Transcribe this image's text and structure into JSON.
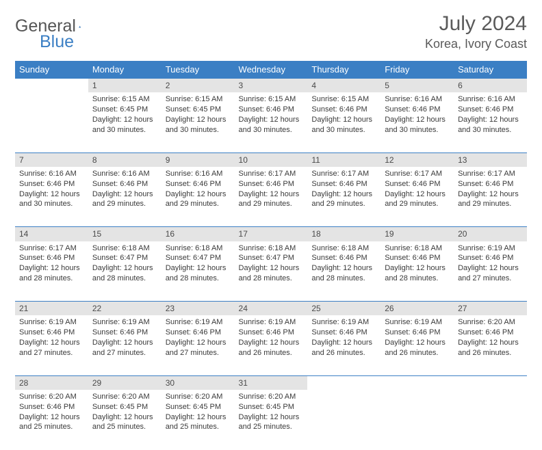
{
  "logo": {
    "general": "General",
    "blue": "Blue"
  },
  "title": "July 2024",
  "location": "Korea, Ivory Coast",
  "colors": {
    "header_bg": "#3b7fc4",
    "header_text": "#ffffff",
    "daynum_bg": "#e4e4e4",
    "rule": "#3b7fc4",
    "text": "#3a3a3a",
    "page_bg": "#ffffff"
  },
  "weekdays": [
    "Sunday",
    "Monday",
    "Tuesday",
    "Wednesday",
    "Thursday",
    "Friday",
    "Saturday"
  ],
  "weeks": [
    [
      null,
      {
        "day": "1",
        "sunrise": "Sunrise: 6:15 AM",
        "sunset": "Sunset: 6:45 PM",
        "daylight1": "Daylight: 12 hours",
        "daylight2": "and 30 minutes."
      },
      {
        "day": "2",
        "sunrise": "Sunrise: 6:15 AM",
        "sunset": "Sunset: 6:45 PM",
        "daylight1": "Daylight: 12 hours",
        "daylight2": "and 30 minutes."
      },
      {
        "day": "3",
        "sunrise": "Sunrise: 6:15 AM",
        "sunset": "Sunset: 6:46 PM",
        "daylight1": "Daylight: 12 hours",
        "daylight2": "and 30 minutes."
      },
      {
        "day": "4",
        "sunrise": "Sunrise: 6:15 AM",
        "sunset": "Sunset: 6:46 PM",
        "daylight1": "Daylight: 12 hours",
        "daylight2": "and 30 minutes."
      },
      {
        "day": "5",
        "sunrise": "Sunrise: 6:16 AM",
        "sunset": "Sunset: 6:46 PM",
        "daylight1": "Daylight: 12 hours",
        "daylight2": "and 30 minutes."
      },
      {
        "day": "6",
        "sunrise": "Sunrise: 6:16 AM",
        "sunset": "Sunset: 6:46 PM",
        "daylight1": "Daylight: 12 hours",
        "daylight2": "and 30 minutes."
      }
    ],
    [
      {
        "day": "7",
        "sunrise": "Sunrise: 6:16 AM",
        "sunset": "Sunset: 6:46 PM",
        "daylight1": "Daylight: 12 hours",
        "daylight2": "and 30 minutes."
      },
      {
        "day": "8",
        "sunrise": "Sunrise: 6:16 AM",
        "sunset": "Sunset: 6:46 PM",
        "daylight1": "Daylight: 12 hours",
        "daylight2": "and 29 minutes."
      },
      {
        "day": "9",
        "sunrise": "Sunrise: 6:16 AM",
        "sunset": "Sunset: 6:46 PM",
        "daylight1": "Daylight: 12 hours",
        "daylight2": "and 29 minutes."
      },
      {
        "day": "10",
        "sunrise": "Sunrise: 6:17 AM",
        "sunset": "Sunset: 6:46 PM",
        "daylight1": "Daylight: 12 hours",
        "daylight2": "and 29 minutes."
      },
      {
        "day": "11",
        "sunrise": "Sunrise: 6:17 AM",
        "sunset": "Sunset: 6:46 PM",
        "daylight1": "Daylight: 12 hours",
        "daylight2": "and 29 minutes."
      },
      {
        "day": "12",
        "sunrise": "Sunrise: 6:17 AM",
        "sunset": "Sunset: 6:46 PM",
        "daylight1": "Daylight: 12 hours",
        "daylight2": "and 29 minutes."
      },
      {
        "day": "13",
        "sunrise": "Sunrise: 6:17 AM",
        "sunset": "Sunset: 6:46 PM",
        "daylight1": "Daylight: 12 hours",
        "daylight2": "and 29 minutes."
      }
    ],
    [
      {
        "day": "14",
        "sunrise": "Sunrise: 6:17 AM",
        "sunset": "Sunset: 6:46 PM",
        "daylight1": "Daylight: 12 hours",
        "daylight2": "and 28 minutes."
      },
      {
        "day": "15",
        "sunrise": "Sunrise: 6:18 AM",
        "sunset": "Sunset: 6:47 PM",
        "daylight1": "Daylight: 12 hours",
        "daylight2": "and 28 minutes."
      },
      {
        "day": "16",
        "sunrise": "Sunrise: 6:18 AM",
        "sunset": "Sunset: 6:47 PM",
        "daylight1": "Daylight: 12 hours",
        "daylight2": "and 28 minutes."
      },
      {
        "day": "17",
        "sunrise": "Sunrise: 6:18 AM",
        "sunset": "Sunset: 6:47 PM",
        "daylight1": "Daylight: 12 hours",
        "daylight2": "and 28 minutes."
      },
      {
        "day": "18",
        "sunrise": "Sunrise: 6:18 AM",
        "sunset": "Sunset: 6:46 PM",
        "daylight1": "Daylight: 12 hours",
        "daylight2": "and 28 minutes."
      },
      {
        "day": "19",
        "sunrise": "Sunrise: 6:18 AM",
        "sunset": "Sunset: 6:46 PM",
        "daylight1": "Daylight: 12 hours",
        "daylight2": "and 28 minutes."
      },
      {
        "day": "20",
        "sunrise": "Sunrise: 6:19 AM",
        "sunset": "Sunset: 6:46 PM",
        "daylight1": "Daylight: 12 hours",
        "daylight2": "and 27 minutes."
      }
    ],
    [
      {
        "day": "21",
        "sunrise": "Sunrise: 6:19 AM",
        "sunset": "Sunset: 6:46 PM",
        "daylight1": "Daylight: 12 hours",
        "daylight2": "and 27 minutes."
      },
      {
        "day": "22",
        "sunrise": "Sunrise: 6:19 AM",
        "sunset": "Sunset: 6:46 PM",
        "daylight1": "Daylight: 12 hours",
        "daylight2": "and 27 minutes."
      },
      {
        "day": "23",
        "sunrise": "Sunrise: 6:19 AM",
        "sunset": "Sunset: 6:46 PM",
        "daylight1": "Daylight: 12 hours",
        "daylight2": "and 27 minutes."
      },
      {
        "day": "24",
        "sunrise": "Sunrise: 6:19 AM",
        "sunset": "Sunset: 6:46 PM",
        "daylight1": "Daylight: 12 hours",
        "daylight2": "and 26 minutes."
      },
      {
        "day": "25",
        "sunrise": "Sunrise: 6:19 AM",
        "sunset": "Sunset: 6:46 PM",
        "daylight1": "Daylight: 12 hours",
        "daylight2": "and 26 minutes."
      },
      {
        "day": "26",
        "sunrise": "Sunrise: 6:19 AM",
        "sunset": "Sunset: 6:46 PM",
        "daylight1": "Daylight: 12 hours",
        "daylight2": "and 26 minutes."
      },
      {
        "day": "27",
        "sunrise": "Sunrise: 6:20 AM",
        "sunset": "Sunset: 6:46 PM",
        "daylight1": "Daylight: 12 hours",
        "daylight2": "and 26 minutes."
      }
    ],
    [
      {
        "day": "28",
        "sunrise": "Sunrise: 6:20 AM",
        "sunset": "Sunset: 6:46 PM",
        "daylight1": "Daylight: 12 hours",
        "daylight2": "and 25 minutes."
      },
      {
        "day": "29",
        "sunrise": "Sunrise: 6:20 AM",
        "sunset": "Sunset: 6:45 PM",
        "daylight1": "Daylight: 12 hours",
        "daylight2": "and 25 minutes."
      },
      {
        "day": "30",
        "sunrise": "Sunrise: 6:20 AM",
        "sunset": "Sunset: 6:45 PM",
        "daylight1": "Daylight: 12 hours",
        "daylight2": "and 25 minutes."
      },
      {
        "day": "31",
        "sunrise": "Sunrise: 6:20 AM",
        "sunset": "Sunset: 6:45 PM",
        "daylight1": "Daylight: 12 hours",
        "daylight2": "and 25 minutes."
      },
      null,
      null,
      null
    ]
  ]
}
